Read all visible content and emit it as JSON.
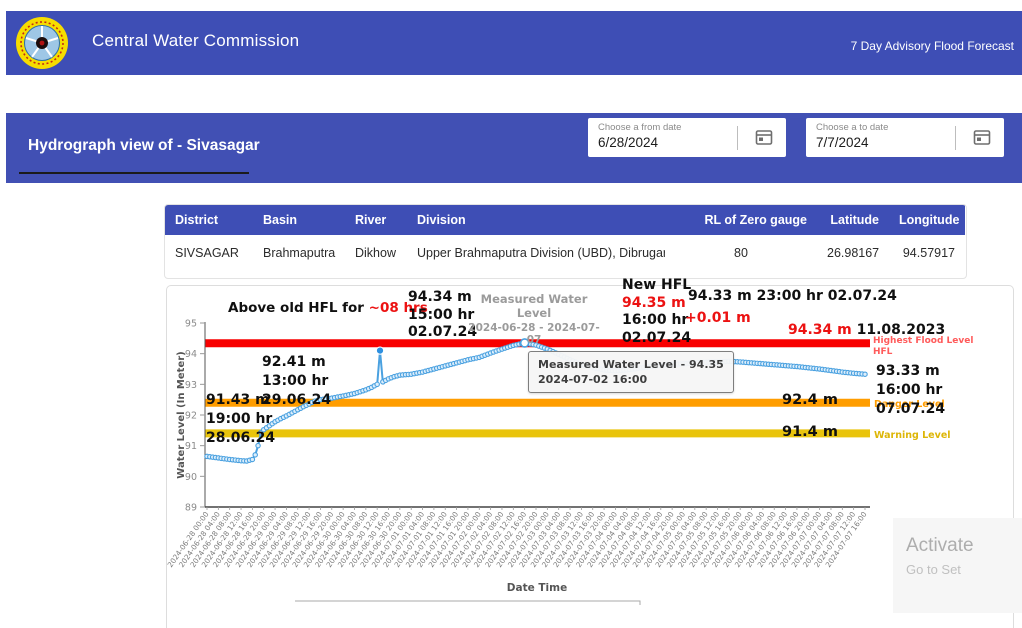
{
  "header": {
    "title": "Central Water Commission",
    "right_label": "7 Day Advisory Flood Forecast",
    "brand_color": "#3e4eb5"
  },
  "subheader": {
    "title": "Hydrograph view of - Sivasagar",
    "from_date": {
      "label": "Choose a from date",
      "value": "6/28/2024"
    },
    "to_date": {
      "label": "Choose a to date",
      "value": "7/7/2024"
    }
  },
  "station_table": {
    "headers": [
      "District",
      "Basin",
      "River",
      "Division",
      "RL of Zero gauge",
      "Latitude",
      "Longitude"
    ],
    "row": [
      "SIVSAGAR",
      "Brahmaputra",
      "Dikhow",
      "Upper Brahmaputra Division (UBD), Dibrugarh",
      "80",
      "26.98167",
      "94.57917"
    ]
  },
  "chart_data": {
    "type": "line",
    "title": "Measured Water Level",
    "subtitle": "2024-06-28 - 2024-07-07",
    "xlabel": "Date Time",
    "ylabel": "Water Level (In Meter)",
    "ylim": [
      89,
      95
    ],
    "y_ticks": [
      95,
      94,
      93,
      92,
      91,
      90,
      89
    ],
    "x_tick_labels": [
      "2024-06-28 00:00",
      "2024-06-28 04:00",
      "2024-06-28 08:00",
      "2024-06-28 12:00",
      "2024-06-28 16:00",
      "2024-06-28 20:00",
      "2024-06-29 00:00",
      "2024-06-29 04:00",
      "2024-06-29 08:00",
      "2024-06-29 12:00",
      "2024-06-29 16:00",
      "2024-06-29 20:00",
      "2024-06-30 00:00",
      "2024-06-30 04:00",
      "2024-06-30 08:00",
      "2024-06-30 12:00",
      "2024-06-30 16:00",
      "2024-06-30 20:00",
      "2024-07-01 00:00",
      "2024-07-01 04:00",
      "2024-07-01 08:00",
      "2024-07-01 12:00",
      "2024-07-01 16:00",
      "2024-07-01 20:00",
      "2024-07-02 00:00",
      "2024-07-02 04:00",
      "2024-07-02 08:00",
      "2024-07-02 12:00",
      "2024-07-02 16:00",
      "2024-07-02 20:00",
      "2024-07-03 00:00",
      "2024-07-03 04:00",
      "2024-07-03 08:00",
      "2024-07-03 12:00",
      "2024-07-03 16:00",
      "2024-07-03 20:00",
      "2024-07-04 00:00",
      "2024-07-04 04:00",
      "2024-07-04 08:00",
      "2024-07-04 12:00",
      "2024-07-04 16:00",
      "2024-07-04 20:00",
      "2024-07-05 00:00",
      "2024-07-05 04:00",
      "2024-07-05 08:00",
      "2024-07-05 12:00",
      "2024-07-05 16:00",
      "2024-07-05 20:00",
      "2024-07-06 00:00",
      "2024-07-06 04:00",
      "2024-07-06 08:00",
      "2024-07-06 12:00",
      "2024-07-06 16:00",
      "2024-07-06 20:00",
      "2024-07-07 00:00",
      "2024-07-07 04:00",
      "2024-07-07 08:00",
      "2024-07-07 12:00",
      "2024-07-07 16:00"
    ],
    "series": [
      {
        "name": "Measured Water Level",
        "color": "#4aa1e0",
        "marker_fill": "#ddeefb",
        "points": [
          [
            0,
            90.65
          ],
          [
            4,
            90.6
          ],
          [
            8,
            90.55
          ],
          [
            12,
            90.51
          ],
          [
            14,
            90.5
          ],
          [
            16,
            90.55
          ],
          [
            17,
            90.7
          ],
          [
            18,
            91.0
          ],
          [
            19,
            91.43
          ],
          [
            20,
            91.52
          ],
          [
            22,
            91.65
          ],
          [
            24,
            91.78
          ],
          [
            26,
            91.88
          ],
          [
            28,
            91.97
          ],
          [
            30,
            92.07
          ],
          [
            32,
            92.17
          ],
          [
            34,
            92.27
          ],
          [
            36,
            92.36
          ],
          [
            37,
            92.41
          ],
          [
            38,
            92.45
          ],
          [
            40,
            92.5
          ],
          [
            44,
            92.55
          ],
          [
            48,
            92.62
          ],
          [
            52,
            92.7
          ],
          [
            56,
            92.82
          ],
          [
            58,
            92.9
          ],
          [
            60,
            93.0
          ],
          [
            61,
            94.1
          ],
          [
            62,
            93.08
          ],
          [
            64,
            93.18
          ],
          [
            66,
            93.25
          ],
          [
            68,
            93.3
          ],
          [
            72,
            93.33
          ],
          [
            76,
            93.4
          ],
          [
            80,
            93.5
          ],
          [
            84,
            93.6
          ],
          [
            88,
            93.7
          ],
          [
            92,
            93.8
          ],
          [
            96,
            93.88
          ],
          [
            100,
            94.02
          ],
          [
            104,
            94.15
          ],
          [
            108,
            94.27
          ],
          [
            112,
            94.35
          ],
          [
            116,
            94.28
          ],
          [
            120,
            94.15
          ],
          [
            124,
            93.98
          ],
          [
            128,
            93.8
          ],
          [
            132,
            93.65
          ],
          [
            136,
            93.55
          ],
          [
            140,
            93.47
          ],
          [
            144,
            93.44
          ],
          [
            148,
            93.47
          ],
          [
            152,
            93.52
          ],
          [
            156,
            93.58
          ],
          [
            160,
            93.62
          ],
          [
            164,
            93.65
          ],
          [
            168,
            93.67
          ],
          [
            172,
            93.7
          ],
          [
            176,
            93.72
          ],
          [
            180,
            93.73
          ],
          [
            184,
            93.75
          ],
          [
            188,
            93.73
          ],
          [
            192,
            93.7
          ],
          [
            196,
            93.67
          ],
          [
            200,
            93.64
          ],
          [
            204,
            93.61
          ],
          [
            208,
            93.58
          ],
          [
            212,
            93.54
          ],
          [
            216,
            93.5
          ],
          [
            220,
            93.45
          ],
          [
            224,
            93.4
          ],
          [
            228,
            93.36
          ],
          [
            232,
            93.33
          ]
        ]
      }
    ],
    "special_points": {
      "spike": [
        61,
        94.1
      ],
      "peak": [
        112,
        94.35
      ]
    },
    "reference_lines": [
      {
        "name": "Highest Flood Level HFL",
        "value": 94.34,
        "color": "#f80000",
        "label_lines": [
          "Highest Flood Level",
          "HFL"
        ],
        "label_color": "#ff5b5b"
      },
      {
        "name": "Danger Level",
        "value": 92.4,
        "color": "#ff9d00",
        "label_lines": [
          "Danger Level"
        ],
        "label_color": "#ff9d00",
        "value_label": "92.4 m"
      },
      {
        "name": "Warning Level",
        "value": 91.4,
        "color": "#e9c40c",
        "label_lines": [
          "Warning Level"
        ],
        "label_color": "#ddb607",
        "value_label": "91.4 m"
      }
    ],
    "annotations": {
      "above_old_hfl_prefix": "Above old HFL for ",
      "above_old_hfl_duration": "~08 hrs",
      "old_hfl_crossing": [
        "94.34 m",
        "15:00 hr",
        "02.07.24"
      ],
      "new_hfl_title": "New HFL",
      "new_hfl_value": "94.35 m",
      "new_hfl_time": "16:00 hr",
      "new_hfl_date": "02.07.24",
      "after_peak_reading": "94.33 m 23:00 hr 02.07.24",
      "hfl_increase": "+0.01 m",
      "old_hfl_value": "94.34 m",
      "old_hfl_date": "11.08.2023",
      "danger_crossing": [
        "92.41 m",
        "13:00 hr",
        "29.06.24"
      ],
      "warning_crossing": [
        "91.43 m",
        "19:00 hr",
        "28.06.24"
      ],
      "latest_reading": [
        "93.33 m",
        "16:00 hr",
        "07.07.24"
      ]
    },
    "tooltip": {
      "title": "Measured Water Level - 94.35",
      "time": "2024-07-02 16:00"
    }
  },
  "watermark": {
    "line1": "Activate",
    "line2": "Go to Set"
  }
}
